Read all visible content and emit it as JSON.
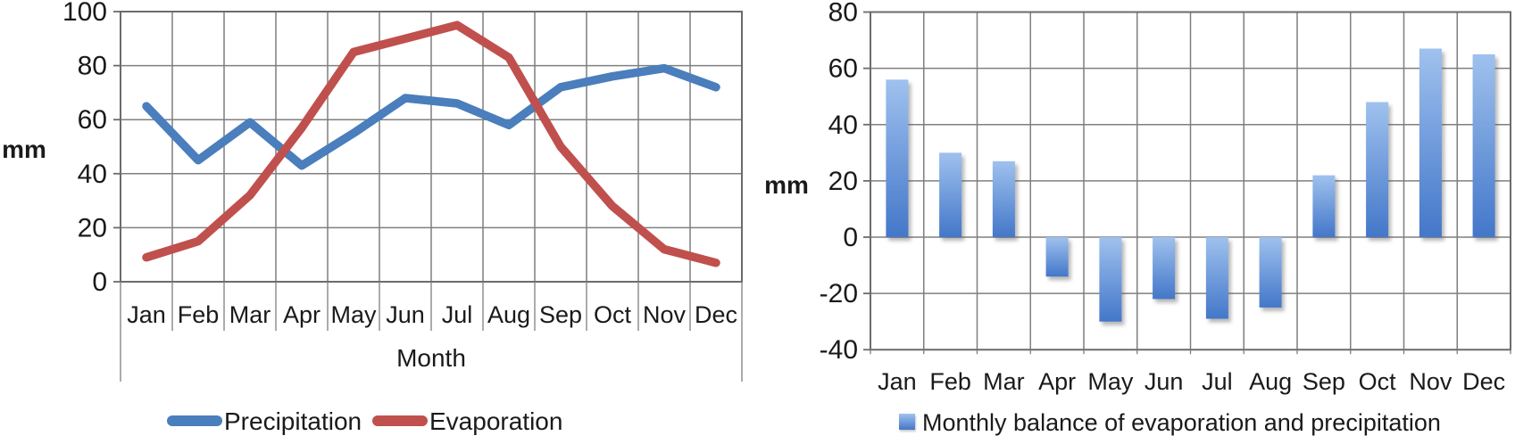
{
  "colors": {
    "grid": "#7f7f7f",
    "border": "#6b6b6b",
    "text": "#1a1a1a",
    "precipitation_blue": "#4a7ebc",
    "evaporation_red": "#c0504d"
  },
  "chart_data": [
    {
      "type": "line",
      "title": "",
      "xlabel": "Month",
      "ylabel": "mm",
      "categories": [
        "Jan",
        "Feb",
        "Mar",
        "Apr",
        "May",
        "Jun",
        "Jul",
        "Aug",
        "Sep",
        "Oct",
        "Nov",
        "Dec"
      ],
      "series": [
        {
          "name": "Precipitation",
          "color": "#4a7ebc",
          "values": [
            65,
            45,
            59,
            43,
            55,
            68,
            66,
            58,
            72,
            76,
            79,
            72
          ]
        },
        {
          "name": "Evaporation",
          "color": "#c0504d",
          "values": [
            9,
            15,
            32,
            57,
            85,
            90,
            95,
            83,
            50,
            28,
            12,
            7
          ]
        }
      ],
      "ylim": [
        0,
        100
      ],
      "ytick_step": 20,
      "ytick_values": [
        100,
        80,
        60,
        40,
        20,
        0
      ],
      "ytick_labels": [
        "100",
        "80",
        "60",
        "40",
        "20",
        "0"
      ],
      "grid": true,
      "legend_position": "bottom"
    },
    {
      "type": "bar",
      "title": "",
      "xlabel": "",
      "ylabel": "mm",
      "categories": [
        "Jan",
        "Feb",
        "Mar",
        "Apr",
        "May",
        "Jun",
        "Jul",
        "Aug",
        "Sep",
        "Oct",
        "Nov",
        "Dec"
      ],
      "series": [
        {
          "name": "Monthly balance of evaporation and precipitation",
          "values": [
            56,
            30,
            27,
            -14,
            -30,
            -22,
            -29,
            -25,
            22,
            48,
            67,
            65
          ]
        }
      ],
      "bar_fill": {
        "top": "#9fc1ee",
        "bottom": "#4377c9"
      },
      "ylim": [
        -40,
        80
      ],
      "ytick_step": 20,
      "ytick_values": [
        80,
        60,
        40,
        20,
        0,
        -20,
        -40
      ],
      "ytick_labels": [
        "80",
        "60",
        "40",
        "20",
        "0",
        "-20",
        "-40"
      ],
      "grid": true,
      "legend_position": "bottom"
    }
  ]
}
